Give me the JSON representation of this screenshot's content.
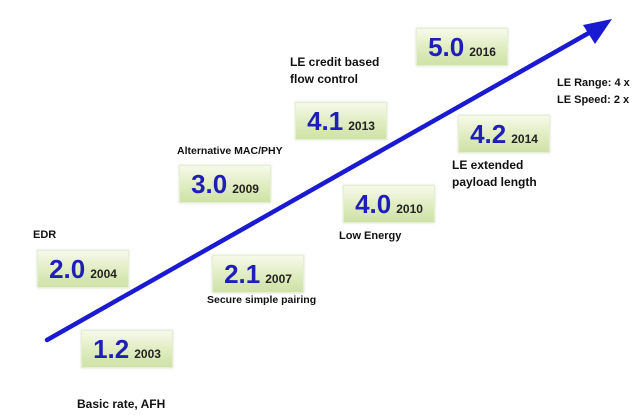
{
  "milestones": [
    {
      "version": "1.2",
      "year": "2003",
      "label": "Basic rate, AFH"
    },
    {
      "version": "2.0",
      "year": "2004",
      "label": "EDR"
    },
    {
      "version": "2.1",
      "year": "2007",
      "label": "Secure simple pairing"
    },
    {
      "version": "3.0",
      "year": "2009",
      "label": "Alternative MAC/PHY"
    },
    {
      "version": "4.0",
      "year": "2010",
      "label": "Low Energy"
    },
    {
      "version": "4.1",
      "year": "2013",
      "label_lines": [
        "LE credit based",
        "flow control"
      ]
    },
    {
      "version": "4.2",
      "year": "2014",
      "label_lines": [
        "LE extended",
        "payload length"
      ]
    },
    {
      "version": "5.0",
      "year": "2016",
      "label_lines": [
        "LE Range: 4 x",
        "LE Speed: 2 x"
      ]
    }
  ],
  "colors": {
    "arrow": "#1a1ad0",
    "version_text": "#1f1fb8",
    "box_fill": "#dfecc0"
  }
}
